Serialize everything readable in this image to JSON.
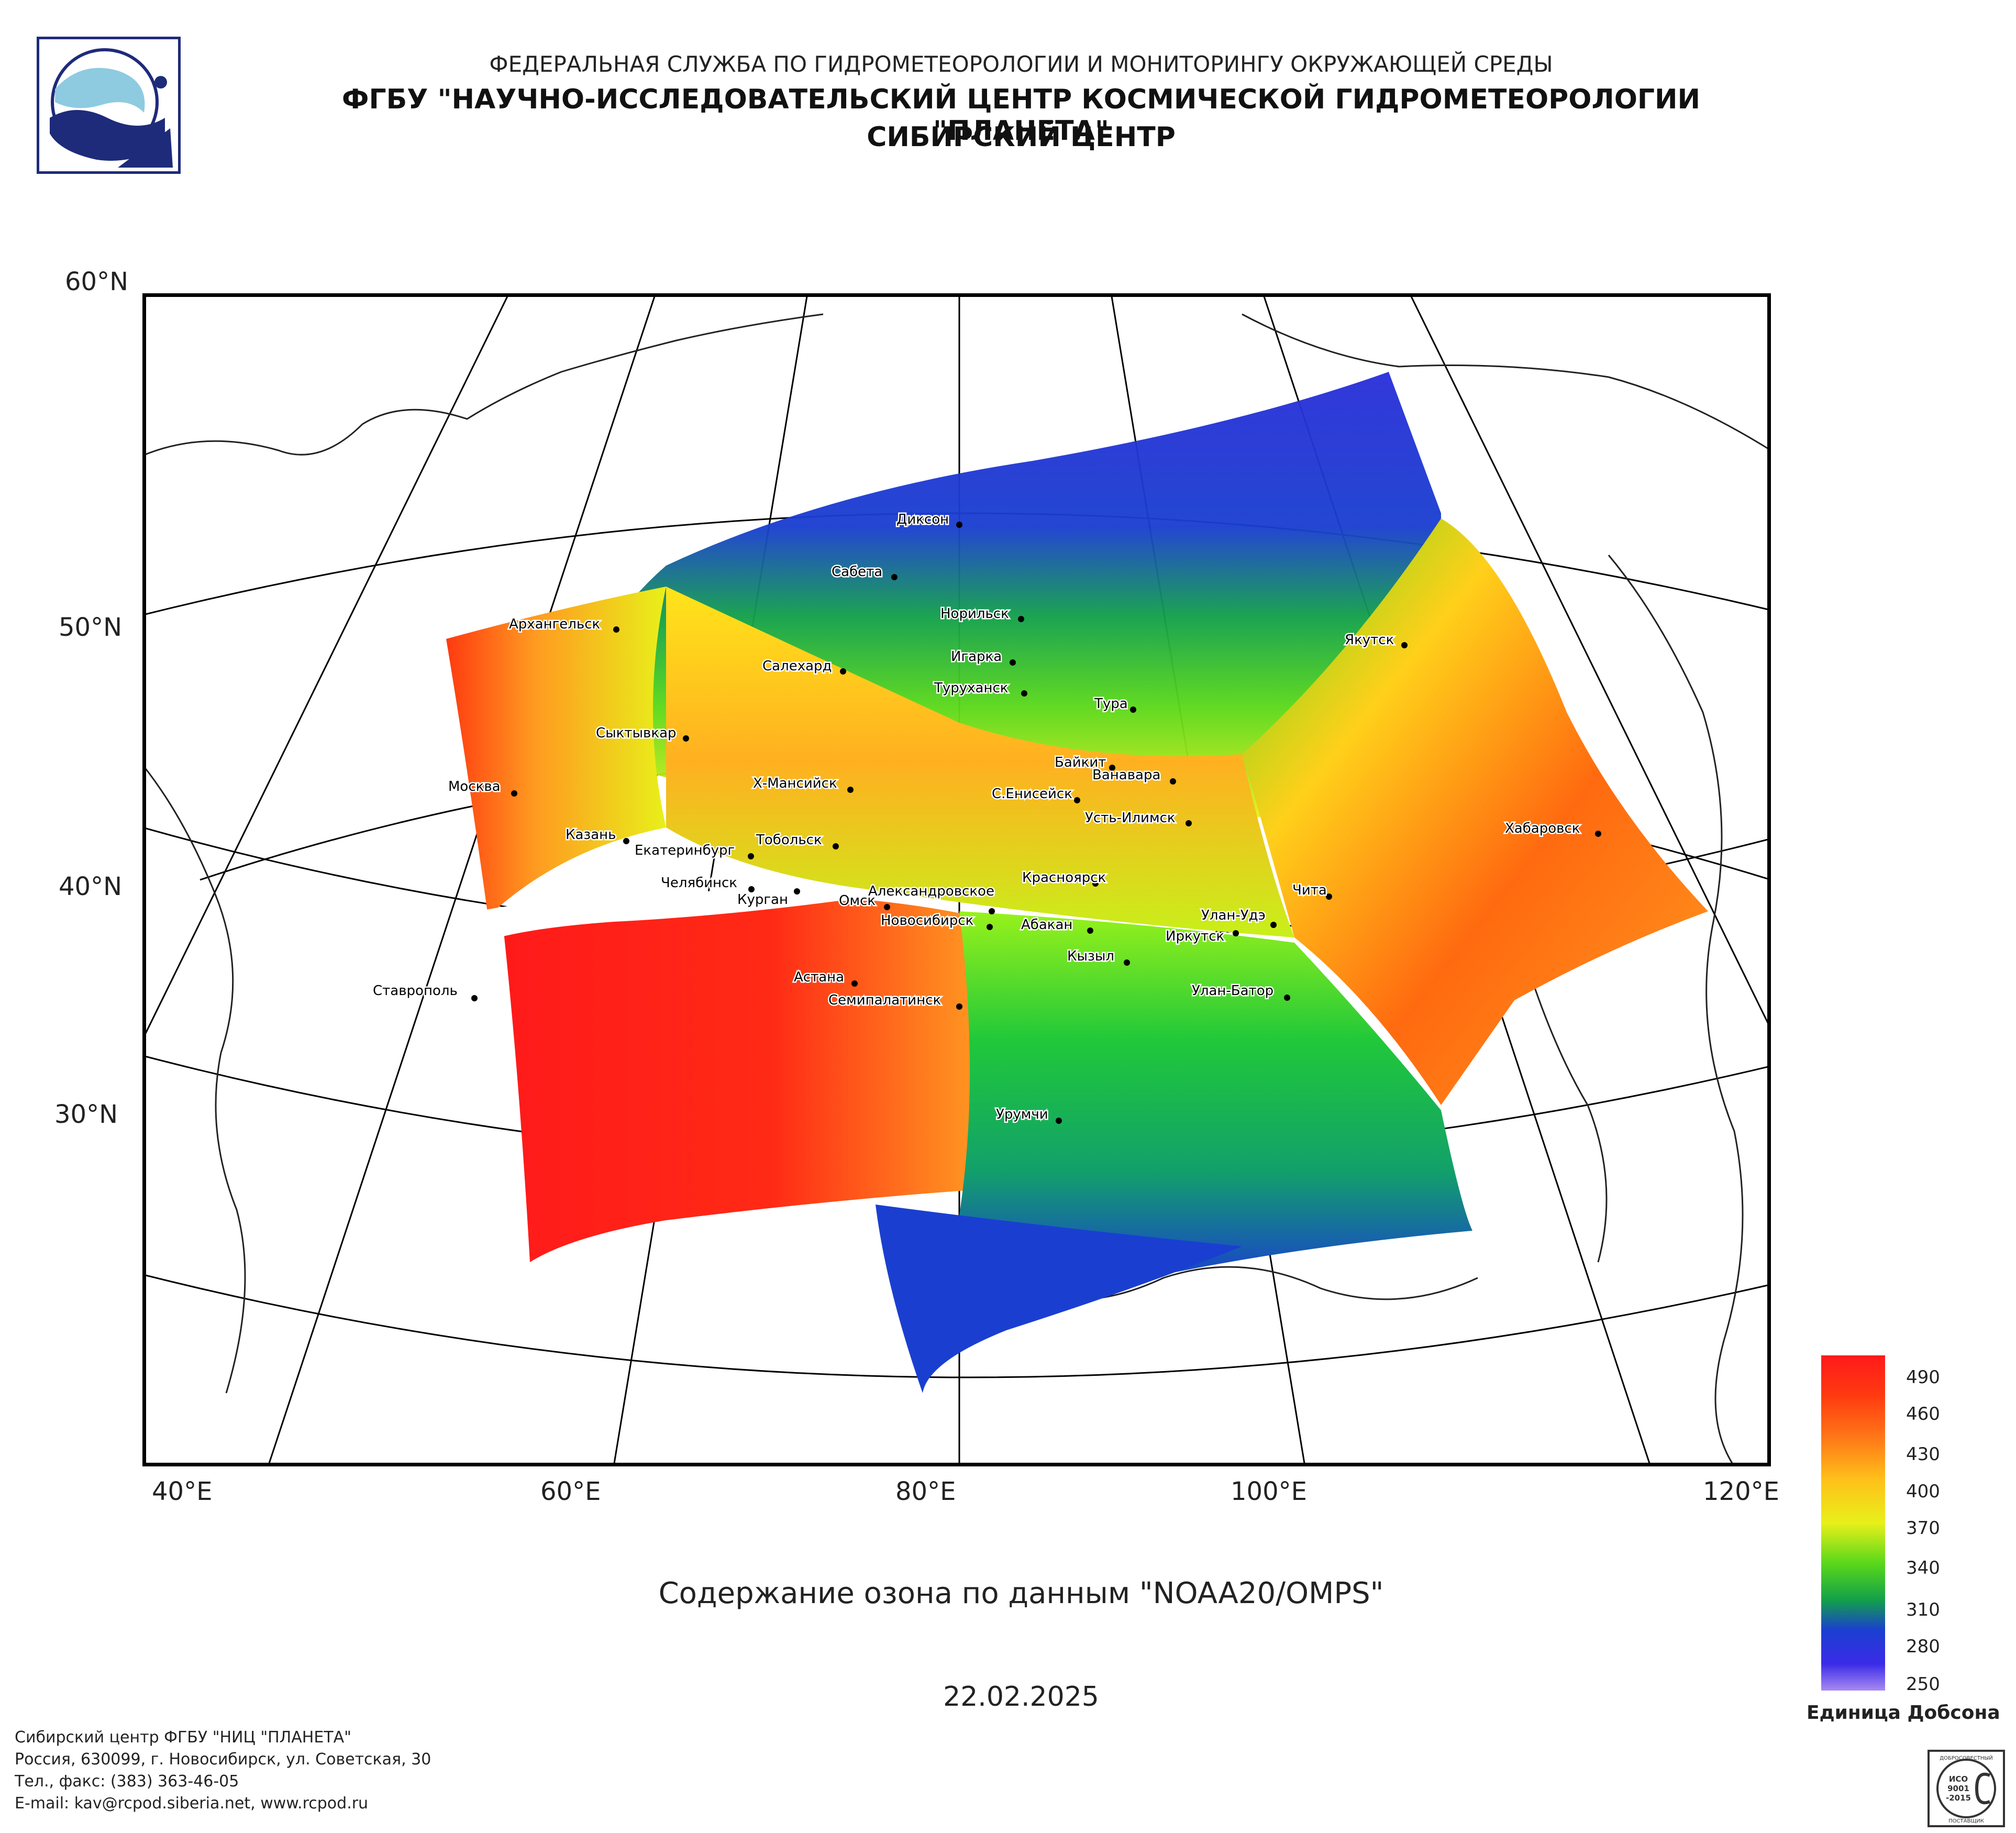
{
  "header": {
    "agency": "ФЕДЕРАЛЬНАЯ СЛУЖБА ПО ГИДРОМЕТЕОРОЛОГИИ И МОНИТОРИНГУ ОКРУЖАЮЩЕЙ СРЕДЫ",
    "institute": "ФГБУ \"НАУЧНО-ИССЛЕДОВАТЕЛЬСКИЙ ЦЕНТР КОСМИЧЕСКОЙ ГИДРОМЕТЕОРОЛОГИИ \"ПЛАНЕТА\"",
    "center": "СИБИРСКИЙ ЦЕНТР"
  },
  "map": {
    "lat_labels": [
      "60°N",
      "50°N",
      "40°N",
      "30°N"
    ],
    "lon_labels": [
      "40°E",
      "60°E",
      "80°E",
      "100°E",
      "120°E"
    ],
    "cities": [
      "Диксон",
      "Сабета",
      "Норильск",
      "Игарка",
      "Туруханск",
      "Салехард",
      "Архангельск",
      "Якутск",
      "Сыктывкар",
      "Тура",
      "Байкит",
      "Ванавара",
      "С.Енисейск",
      "Х-Мансийск",
      "Москва",
      "Усть-Илимск",
      "Хабаровск",
      "Казань",
      "Тобольск",
      "Екатеринбург",
      "Красноярск",
      "Челябинск",
      "Курган",
      "Александровское",
      "Омск",
      "Новосибирск",
      "Чита",
      "Абакан",
      "Улан-Удэ",
      "Иркутск",
      "Кызыл",
      "Астана",
      "Ставрополь",
      "Семипалатинск",
      "Улан-Батор",
      "Урумчи"
    ]
  },
  "product_title": "Содержание озона по данным \"NOAA20/OMPS\"",
  "date": "22.02.2025",
  "legend": {
    "ticks": [
      "490",
      "460",
      "430",
      "400",
      "370",
      "340",
      "310",
      "280",
      "250"
    ],
    "unit": "Единица Добсона",
    "colors": [
      "#ff1a1a",
      "#ff5a10",
      "#ffa020",
      "#ffe41a",
      "#98f21a",
      "#12c23c",
      "#1a3fd0",
      "#3a2be8",
      "#9a7af0"
    ]
  },
  "footer": {
    "line1": "Сибирский центр ФГБУ \"НИЦ \"ПЛАНЕТА\"",
    "line2": "Россия, 630099, г. Новосибирск, ул. Советская, 30",
    "line3": "Тел., факс: (383) 363-46-05",
    "line4": "E-mail: kav@rcpod.siberia.net, www.rcpod.ru"
  },
  "iso_badge": {
    "top": "ДОБРОСОВЕСТНЫЙ",
    "line1": "ИСО",
    "line2": "9001",
    "line3": "-2015",
    "bottom": "ПОСТАВЩИК"
  }
}
